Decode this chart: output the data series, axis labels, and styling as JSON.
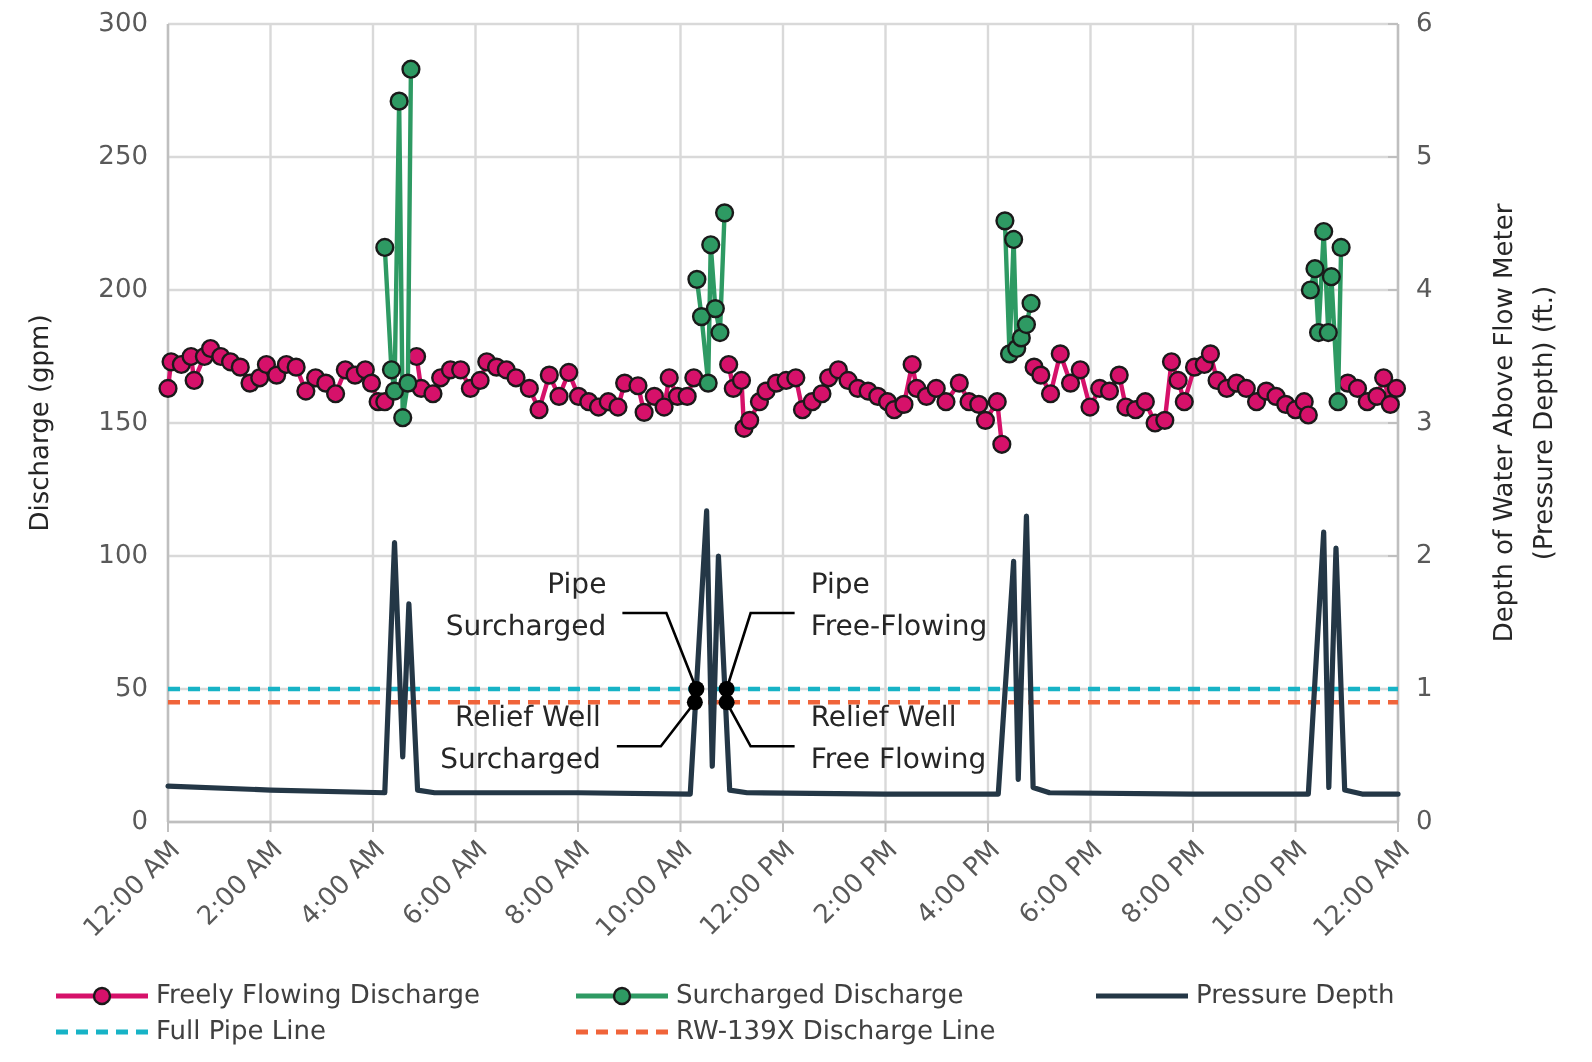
{
  "chart_data": {
    "type": "line",
    "xlabel": null,
    "ylabel": "Discharge (gpm)",
    "y2label": "Depth of Water Above Flow Meter (Pressure Depth) (ft.)",
    "xlim": [
      0,
      24
    ],
    "xticks": [
      {
        "value": 0,
        "label": "12:00 AM"
      },
      {
        "value": 2,
        "label": "2:00 AM"
      },
      {
        "value": 4,
        "label": "4:00 AM"
      },
      {
        "value": 6,
        "label": "6:00 AM"
      },
      {
        "value": 8,
        "label": "8:00 AM"
      },
      {
        "value": 10,
        "label": "10:00 AM"
      },
      {
        "value": 12,
        "label": "12:00 PM"
      },
      {
        "value": 14,
        "label": "2:00 PM"
      },
      {
        "value": 16,
        "label": "4:00 PM"
      },
      {
        "value": 18,
        "label": "6:00 PM"
      },
      {
        "value": 20,
        "label": "8:00 PM"
      },
      {
        "value": 22,
        "label": "10:00 PM"
      },
      {
        "value": 24,
        "label": "12:00 AM"
      }
    ],
    "ylim": [
      0,
      300
    ],
    "yticks": [
      0,
      50,
      100,
      150,
      200,
      250,
      300
    ],
    "y2lim": [
      0,
      6
    ],
    "y2ticks": [
      0,
      1,
      2,
      3,
      4,
      5,
      6
    ],
    "grid": true,
    "legend": "bottom",
    "series": [
      {
        "name": "Freely Flowing Discharge",
        "marker": "circle",
        "color": "#d6116a",
        "x": [
          0,
          0.06,
          0.26,
          0.45,
          0.51,
          0.71,
          0.83,
          1.03,
          1.22,
          1.41,
          1.6,
          1.79,
          1.92,
          2.12,
          2.31,
          2.5,
          2.69,
          2.88,
          3.08,
          3.27,
          3.46,
          3.65,
          3.85,
          3.97,
          4.1,
          4.23,
          4.5,
          4.85,
          4.94,
          5.17,
          5.32,
          5.51,
          5.71,
          5.9,
          6.09,
          6.22,
          6.41,
          6.6,
          6.79,
          7.05,
          7.24,
          7.44,
          7.63,
          7.82,
          8.01,
          8.21,
          8.4,
          8.59,
          8.78,
          8.91,
          9.17,
          9.29,
          9.49,
          9.68,
          9.78,
          9.94,
          10.13,
          10.26,
          10.6,
          10.94,
          11.03,
          11.19,
          11.24,
          11.35,
          11.54,
          11.67,
          11.87,
          12.06,
          12.25,
          12.38,
          12.57,
          12.76,
          12.89,
          13.08,
          13.27,
          13.46,
          13.66,
          13.85,
          14.04,
          14.17,
          14.36,
          14.52,
          14.61,
          14.8,
          14.99,
          15.18,
          15.44,
          15.63,
          15.82,
          15.95,
          16.18,
          16.27,
          16.6,
          16.9,
          17.03,
          17.22,
          17.41,
          17.61,
          17.8,
          17.99,
          18.18,
          18.37,
          18.56,
          18.69,
          18.88,
          19.07,
          19.26,
          19.45,
          19.58,
          19.71,
          19.83,
          20.03,
          20.22,
          20.34,
          20.47,
          20.66,
          20.85,
          21.04,
          21.24,
          21.43,
          21.62,
          21.81,
          22,
          22.17,
          22.25,
          22.6,
          23.02,
          23.21,
          23.4,
          23.59,
          23.72,
          23.85,
          23.97
        ],
        "values": [
          163,
          173,
          172,
          175,
          166,
          175,
          178,
          175,
          173,
          171,
          165,
          167,
          172,
          168,
          172,
          171,
          162,
          167,
          165,
          161,
          170,
          168,
          170,
          165,
          158,
          158,
          null,
          175,
          163,
          161,
          167,
          170,
          170,
          163,
          166,
          173,
          171,
          170,
          167,
          163,
          155,
          168,
          160,
          169,
          160,
          158,
          156,
          158,
          156,
          165,
          164,
          154,
          160,
          156,
          167,
          160,
          160,
          167,
          null,
          172,
          163,
          166,
          148,
          151,
          158,
          162,
          165,
          166,
          167,
          155,
          158,
          161,
          167,
          170,
          166,
          163,
          162,
          160,
          158,
          155,
          157,
          172,
          163,
          160,
          163,
          158,
          165,
          158,
          157,
          151,
          158,
          142,
          null,
          171,
          168,
          161,
          176,
          165,
          170,
          156,
          163,
          162,
          168,
          156,
          155,
          158,
          150,
          151,
          173,
          166,
          158,
          171,
          172,
          176,
          166,
          163,
          165,
          163,
          158,
          162,
          160,
          157,
          155,
          158,
          153,
          null,
          165,
          163,
          158,
          160,
          167,
          157,
          163
        ]
      },
      {
        "name": "Surcharged Discharge",
        "marker": "circle",
        "color": "#2e9a63",
        "x": [
          4.23,
          4.36,
          4.42,
          4.51,
          4.58,
          4.68,
          4.74,
          7,
          10.32,
          10.41,
          10.54,
          10.59,
          10.68,
          10.77,
          10.86,
          14,
          16.33,
          16.42,
          16.5,
          16.56,
          16.65,
          16.75,
          16.84,
          20,
          22.29,
          22.38,
          22.45,
          22.55,
          22.64,
          22.7,
          22.83,
          22.89
        ],
        "values": [
          216,
          170,
          162,
          271,
          152,
          165,
          283,
          null,
          204,
          190,
          165,
          217,
          193,
          184,
          229,
          null,
          226,
          176,
          219,
          178,
          182,
          187,
          195,
          null,
          200,
          208,
          184,
          222,
          184,
          205,
          158,
          216
        ]
      },
      {
        "name": "Pressure Depth",
        "marker": "none",
        "axis": "y2",
        "color": "#243746",
        "x": [
          0,
          2,
          4.23,
          4.42,
          4.58,
          4.7,
          4.87,
          5.2,
          8,
          10.19,
          10.51,
          10.62,
          10.74,
          10.96,
          11.3,
          14,
          16.2,
          16.5,
          16.59,
          16.75,
          16.88,
          17.2,
          20,
          22.25,
          22.55,
          22.65,
          22.79,
          22.96,
          23.3,
          24
        ],
        "values": [
          0.27,
          0.24,
          0.22,
          2.1,
          0.49,
          1.64,
          0.24,
          0.22,
          0.22,
          0.21,
          2.34,
          0.42,
          2.0,
          0.24,
          0.22,
          0.21,
          0.21,
          1.96,
          0.32,
          2.3,
          0.26,
          0.22,
          0.21,
          0.21,
          2.18,
          0.26,
          2.06,
          0.24,
          0.21,
          0.21
        ]
      }
    ],
    "ref_lines": [
      {
        "axis": "y",
        "value": 50,
        "label": "Full Pipe Line",
        "color": "#17b3c6",
        "line_style": "dashed"
      },
      {
        "axis": "y",
        "value": 45,
        "label": "RW-139X Discharge Line",
        "color": "#f0643a",
        "line_style": "dashed"
      }
    ],
    "annotations": [
      {
        "text": "Pipe Surcharged",
        "x": 10.31,
        "y": 50
      },
      {
        "text": "Relief Well Surcharged",
        "x": 10.28,
        "y": 45
      },
      {
        "text": "Pipe Free-Flowing",
        "x": 10.9,
        "y": 50
      },
      {
        "text": "Relief Well Free Flowing",
        "x": 10.9,
        "y": 45
      }
    ]
  }
}
